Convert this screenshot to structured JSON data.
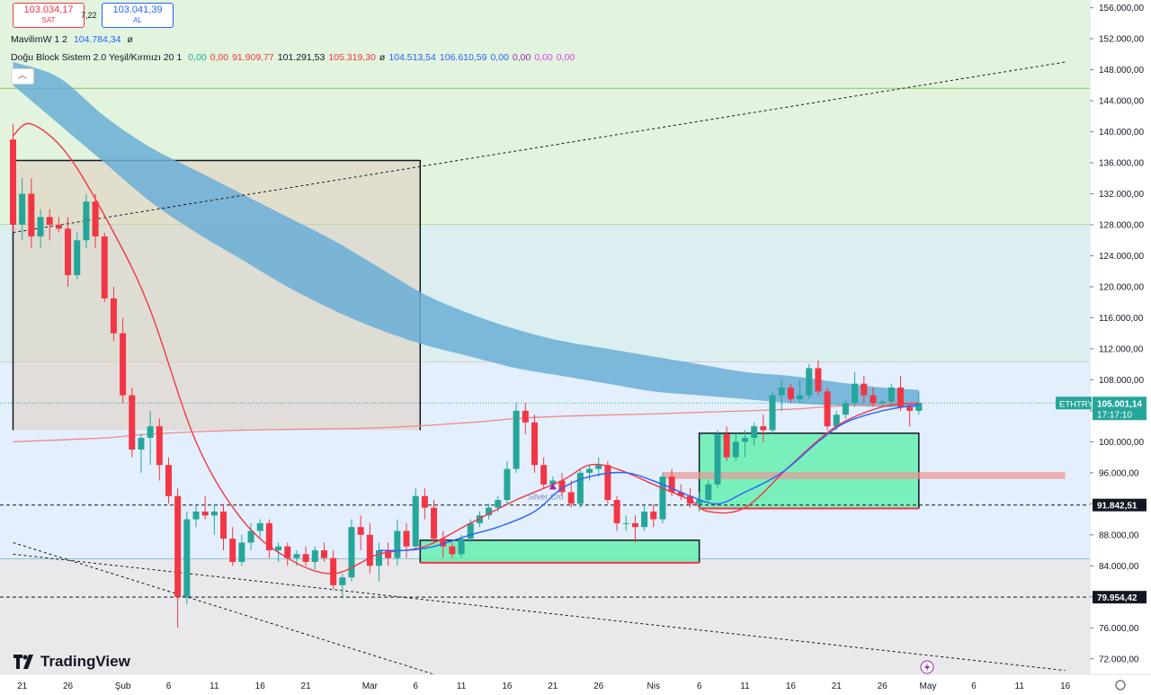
{
  "quotes": {
    "sell_price": "103.034,17",
    "sell_label": "SAT",
    "spread": "7,22",
    "buy_price": "103.041,39",
    "buy_label": "AL"
  },
  "indicators": {
    "line1": {
      "name": "MavilimW 1 2",
      "value": "104.784,34",
      "value_color": "#2962ff",
      "eye": "ø"
    },
    "line2": {
      "name": "Doğu Block Sistem 2.0 Yeşil/Kırmızı 20 1",
      "values": [
        {
          "text": "0,00",
          "color": "#26a69a"
        },
        {
          "text": "0,00",
          "color": "#f23645"
        },
        {
          "text": "91.909,77",
          "color": "#f23645"
        },
        {
          "text": "101.291,53",
          "color": "#131722"
        },
        {
          "text": "105.319,30",
          "color": "#f23645"
        },
        {
          "text": "ø",
          "color": "#131722"
        },
        {
          "text": "104.513,54",
          "color": "#2962ff"
        },
        {
          "text": "106.610,59",
          "color": "#2962ff"
        },
        {
          "text": "0,00",
          "color": "#2962ff"
        },
        {
          "text": "0,00",
          "color": "#9c27b0"
        },
        {
          "text": "0,00",
          "color": "#e040fb"
        },
        {
          "text": "0,00",
          "color": "#e040fb"
        }
      ]
    }
  },
  "logo": {
    "text": "TradingView"
  },
  "chart_data": {
    "type": "candlestick",
    "symbol": "ETHTRY",
    "last_price": "105.001,14",
    "countdown": "17:17:10",
    "ylim": [
      70000,
      157000
    ],
    "y_ticks": [
      72000,
      76000,
      80000,
      84000,
      88000,
      92000,
      96000,
      100000,
      104000,
      108000,
      112000,
      116000,
      120000,
      124000,
      128000,
      132000,
      136000,
      140000,
      144000,
      148000,
      152000,
      156000
    ],
    "y_tick_labels": [
      "72.000,00",
      "76.000,00",
      "80.000,00",
      "84.000,00",
      "88.000,00",
      "92.000,00",
      "96.000,00",
      "100.000,00",
      "104.000,00",
      "108.000,00",
      "112.000,00",
      "116.000,00",
      "120.000,00",
      "124.000,00",
      "128.000,00",
      "132.000,00",
      "136.000,00",
      "140.000,00",
      "144.000,00",
      "148.000,00",
      "152.000,00",
      "156.000,00"
    ],
    "x_ticks": [
      {
        "i": 1,
        "label": "21"
      },
      {
        "i": 6,
        "label": "26"
      },
      {
        "i": 12,
        "label": "Şub"
      },
      {
        "i": 17,
        "label": "6"
      },
      {
        "i": 22,
        "label": "11"
      },
      {
        "i": 27,
        "label": "16"
      },
      {
        "i": 32,
        "label": "21"
      },
      {
        "i": 39,
        "label": "Mar"
      },
      {
        "i": 44,
        "label": "6"
      },
      {
        "i": 49,
        "label": "11"
      },
      {
        "i": 54,
        "label": "16"
      },
      {
        "i": 59,
        "label": "21"
      },
      {
        "i": 64,
        "label": "26"
      },
      {
        "i": 70,
        "label": "Nis"
      },
      {
        "i": 75,
        "label": "6"
      },
      {
        "i": 80,
        "label": "11"
      },
      {
        "i": 85,
        "label": "16"
      },
      {
        "i": 90,
        "label": "21"
      },
      {
        "i": 95,
        "label": "26"
      },
      {
        "i": 100,
        "label": "May"
      },
      {
        "i": 105,
        "label": "6"
      },
      {
        "i": 110,
        "label": "11"
      },
      {
        "i": 115,
        "label": "16"
      }
    ],
    "price_labels": [
      {
        "value": 91842.51,
        "text": "91.842,51"
      },
      {
        "value": 79954.42,
        "text": "79.954,42"
      }
    ],
    "candles": [
      [
        139000,
        141000,
        127000,
        128000
      ],
      [
        128000,
        134000,
        126000,
        132000
      ],
      [
        132000,
        134000,
        125000,
        126500
      ],
      [
        126500,
        130000,
        125000,
        129000
      ],
      [
        129000,
        130000,
        126000,
        128000
      ],
      [
        128000,
        129000,
        127000,
        127500
      ],
      [
        127500,
        129000,
        120000,
        121500
      ],
      [
        121500,
        127000,
        121000,
        126000
      ],
      [
        126000,
        132000,
        125000,
        131000
      ],
      [
        131000,
        132000,
        125000,
        126500
      ],
      [
        126500,
        127000,
        118000,
        118500
      ],
      [
        118500,
        120000,
        113000,
        114000
      ],
      [
        114000,
        116000,
        105000,
        106000
      ],
      [
        106000,
        107000,
        98000,
        99000
      ],
      [
        99000,
        101000,
        96000,
        100500
      ],
      [
        100500,
        104000,
        97000,
        102000
      ],
      [
        102000,
        103000,
        95000,
        97000
      ],
      [
        97000,
        98000,
        92000,
        93000
      ],
      [
        93000,
        94000,
        76000,
        80000
      ],
      [
        80000,
        91000,
        79000,
        90000
      ],
      [
        90000,
        92000,
        89000,
        91000
      ],
      [
        91000,
        93000,
        90000,
        90500
      ],
      [
        90500,
        92000,
        88000,
        91000
      ],
      [
        91000,
        92000,
        86000,
        87500
      ],
      [
        87500,
        89000,
        84000,
        84500
      ],
      [
        84500,
        88000,
        84000,
        87000
      ],
      [
        87000,
        89500,
        86000,
        88500
      ],
      [
        88500,
        90000,
        87500,
        89500
      ],
      [
        89500,
        90000,
        85000,
        86000
      ],
      [
        86000,
        87000,
        84500,
        86500
      ],
      [
        86500,
        87000,
        84000,
        85000
      ],
      [
        85000,
        86000,
        84000,
        85500
      ],
      [
        85500,
        86500,
        84000,
        84500
      ],
      [
        84500,
        86500,
        83500,
        86000
      ],
      [
        86000,
        87000,
        84500,
        85000
      ],
      [
        85000,
        86000,
        81000,
        81500
      ],
      [
        81500,
        83000,
        80000,
        82500
      ],
      [
        82500,
        90000,
        82000,
        89000
      ],
      [
        89000,
        90500,
        86000,
        88000
      ],
      [
        88000,
        89500,
        83000,
        84000
      ],
      [
        84000,
        87000,
        82000,
        86000
      ],
      [
        86000,
        87000,
        84000,
        85000
      ],
      [
        85000,
        90000,
        84000,
        88500
      ],
      [
        88500,
        89500,
        85000,
        86500
      ],
      [
        86500,
        94000,
        86000,
        93000
      ],
      [
        93000,
        94000,
        90000,
        91500
      ],
      [
        91500,
        92500,
        87000,
        87500
      ],
      [
        87500,
        88500,
        85000,
        86500
      ],
      [
        86500,
        87000,
        85000,
        85500
      ],
      [
        85500,
        88000,
        85000,
        87500
      ],
      [
        87500,
        90000,
        87000,
        89500
      ],
      [
        89500,
        91000,
        89000,
        90500
      ],
      [
        90500,
        92000,
        90000,
        91500
      ],
      [
        91500,
        93000,
        91000,
        92500
      ],
      [
        92500,
        97500,
        92000,
        96500
      ],
      [
        96500,
        105000,
        96000,
        104000
      ],
      [
        104000,
        105000,
        101000,
        102500
      ],
      [
        102500,
        103500,
        96000,
        97000
      ],
      [
        97000,
        98000,
        94000,
        94500
      ],
      [
        94500,
        95500,
        94000,
        95000
      ],
      [
        95000,
        96000,
        93000,
        93500
      ],
      [
        93500,
        95000,
        91500,
        92000
      ],
      [
        92000,
        96500,
        91500,
        96000
      ],
      [
        96000,
        97000,
        95000,
        96500
      ],
      [
        96500,
        98000,
        95500,
        97000
      ],
      [
        97000,
        97500,
        92000,
        92500
      ],
      [
        92500,
        93000,
        88500,
        89500
      ],
      [
        89500,
        90500,
        88500,
        89500
      ],
      [
        89500,
        90500,
        87000,
        89000
      ],
      [
        89000,
        92000,
        88500,
        91000
      ],
      [
        91000,
        92000,
        89000,
        90000
      ],
      [
        90000,
        96000,
        89500,
        95500
      ],
      [
        95500,
        96500,
        93000,
        93500
      ],
      [
        93500,
        94500,
        92500,
        93000
      ],
      [
        93000,
        94000,
        91500,
        92000
      ],
      [
        92000,
        93500,
        91000,
        92500
      ],
      [
        92500,
        95000,
        92000,
        94500
      ],
      [
        94500,
        101500,
        94000,
        101000
      ],
      [
        101000,
        102000,
        97500,
        98000
      ],
      [
        98000,
        101000,
        97500,
        100000
      ],
      [
        100000,
        101500,
        98000,
        100500
      ],
      [
        100500,
        102500,
        99500,
        102000
      ],
      [
        102000,
        103500,
        100000,
        101500
      ],
      [
        101500,
        106500,
        101000,
        106000
      ],
      [
        106000,
        108000,
        104000,
        107000
      ],
      [
        107000,
        107500,
        105000,
        105500
      ],
      [
        105500,
        108000,
        105000,
        106000
      ],
      [
        106000,
        110000,
        105500,
        109500
      ],
      [
        109500,
        110500,
        106000,
        106500
      ],
      [
        106500,
        107000,
        101500,
        102000
      ],
      [
        102000,
        104000,
        101500,
        103500
      ],
      [
        103500,
        105500,
        103000,
        105000
      ],
      [
        105000,
        109000,
        104500,
        107500
      ],
      [
        107500,
        108500,
        105000,
        106000
      ],
      [
        106000,
        107000,
        104500,
        105000
      ],
      [
        105000,
        105500,
        104500,
        105200
      ],
      [
        105200,
        107500,
        104500,
        107000
      ],
      [
        107000,
        108500,
        104000,
        104500
      ],
      [
        104500,
        105000,
        102000,
        104000
      ],
      [
        104000,
        106500,
        103500,
        105000
      ]
    ],
    "ma_red_control": [
      [
        0,
        139500
      ],
      [
        2,
        141000
      ],
      [
        6,
        137000
      ],
      [
        11,
        127000
      ],
      [
        15,
        117000
      ],
      [
        20,
        100000
      ],
      [
        25,
        90000
      ],
      [
        30,
        85000
      ],
      [
        35,
        83000
      ],
      [
        40,
        85500
      ],
      [
        45,
        86500
      ],
      [
        50,
        89500
      ],
      [
        55,
        92500
      ],
      [
        60,
        95000
      ],
      [
        63,
        97000
      ],
      [
        66,
        96500
      ],
      [
        70,
        94500
      ],
      [
        74,
        92500
      ],
      [
        76,
        91000
      ],
      [
        80,
        91500
      ],
      [
        85,
        97000
      ],
      [
        90,
        102000
      ],
      [
        95,
        104500
      ],
      [
        99,
        105000
      ]
    ],
    "mavilim_control": [
      [
        40,
        86000
      ],
      [
        43,
        86000
      ],
      [
        46,
        86500
      ],
      [
        50,
        88000
      ],
      [
        53,
        89000
      ],
      [
        57,
        91000
      ],
      [
        60,
        94000
      ],
      [
        63,
        95500
      ],
      [
        67,
        96000
      ],
      [
        71,
        94500
      ],
      [
        74,
        93000
      ],
      [
        77,
        92000
      ],
      [
        80,
        93500
      ],
      [
        84,
        96000
      ],
      [
        88,
        100000
      ],
      [
        91,
        102500
      ],
      [
        95,
        104000
      ],
      [
        99,
        104800
      ]
    ],
    "cloud_upper_control": [
      [
        0,
        149000
      ],
      [
        5,
        147000
      ],
      [
        10,
        142000
      ],
      [
        15,
        138000
      ],
      [
        20,
        135000
      ],
      [
        25,
        132000
      ],
      [
        30,
        129000
      ],
      [
        35,
        126000
      ],
      [
        40,
        122500
      ],
      [
        45,
        119000
      ],
      [
        50,
        116500
      ],
      [
        55,
        114500
      ],
      [
        60,
        113000
      ],
      [
        65,
        112000
      ],
      [
        70,
        111000
      ],
      [
        75,
        110000
      ],
      [
        80,
        109000
      ],
      [
        85,
        108500
      ],
      [
        90,
        107700
      ],
      [
        95,
        107000
      ],
      [
        99,
        106700
      ]
    ],
    "cloud_lower_control": [
      [
        0,
        146000
      ],
      [
        5,
        141000
      ],
      [
        10,
        136000
      ],
      [
        15,
        131000
      ],
      [
        20,
        127000
      ],
      [
        25,
        123500
      ],
      [
        30,
        120000
      ],
      [
        35,
        117000
      ],
      [
        40,
        114500
      ],
      [
        45,
        112500
      ],
      [
        50,
        111000
      ],
      [
        55,
        109500
      ],
      [
        60,
        108500
      ],
      [
        65,
        107500
      ],
      [
        70,
        106500
      ],
      [
        75,
        106000
      ],
      [
        80,
        105500
      ],
      [
        85,
        105000
      ],
      [
        90,
        104700
      ],
      [
        95,
        104500
      ],
      [
        99,
        104400
      ]
    ],
    "step_line_control": [
      [
        0,
        100000
      ],
      [
        10,
        100500
      ],
      [
        15,
        101000
      ],
      [
        25,
        101500
      ],
      [
        40,
        101800
      ],
      [
        50,
        102500
      ],
      [
        55,
        103000
      ],
      [
        60,
        103300
      ],
      [
        70,
        103600
      ],
      [
        75,
        103800
      ],
      [
        85,
        104200
      ],
      [
        90,
        104600
      ],
      [
        99,
        105000
      ]
    ],
    "trendline_up": [
      [
        0,
        127000
      ],
      [
        115,
        149000
      ]
    ],
    "trendline_down1": [
      [
        0,
        87000
      ],
      [
        46,
        70000
      ]
    ],
    "trendline_down2": [
      [
        0,
        85500
      ],
      [
        115,
        70500
      ]
    ],
    "zones": [
      {
        "from": 0,
        "to": 115,
        "low": 128000,
        "high": 157000,
        "color": "#e2f4dd",
        "border": "#8bc34a",
        "hline": 145600
      },
      {
        "from": 0,
        "to": 115,
        "low": 110300,
        "high": 128000,
        "color": "#dbeff0",
        "border": "#d4a09a"
      },
      {
        "from": 0,
        "to": 115,
        "low": 84900,
        "high": 110300,
        "color": "#e3effc",
        "border": "#4fa3b6"
      },
      {
        "from": 0,
        "to": 115,
        "low": 70000,
        "high": 84900,
        "color": "#e9e9ec"
      }
    ],
    "boxes": [
      {
        "from": 0,
        "to": 44.5,
        "low": 101500,
        "high": 136300,
        "color": "rgba(224,205,190,0.55)",
        "border": "#131722"
      },
      {
        "from": 44.5,
        "to": 75,
        "low": 84400,
        "high": 87300,
        "color": "rgba(94,240,170,0.8)",
        "border": "#131722",
        "bottom_line": "#f23645"
      },
      {
        "from": 75,
        "to": 99,
        "low": 91400,
        "high": 101100,
        "color": "rgba(94,240,170,0.8)",
        "border": "#131722",
        "bottom_line": "#f23645"
      }
    ],
    "resistance_band": {
      "from": 71,
      "to": 115,
      "low": 95200,
      "high": 96100,
      "color": "rgba(236,150,150,0.7)"
    },
    "signal": {
      "i": 59,
      "value": 94200,
      "text": "Silver Cro"
    },
    "dotted_hline": 105001
  }
}
